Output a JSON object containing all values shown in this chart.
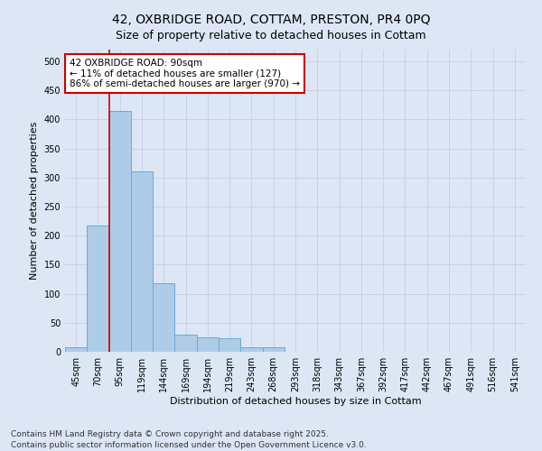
{
  "title_line1": "42, OXBRIDGE ROAD, COTTAM, PRESTON, PR4 0PQ",
  "title_line2": "Size of property relative to detached houses in Cottam",
  "xlabel": "Distribution of detached houses by size in Cottam",
  "ylabel": "Number of detached properties",
  "bar_color": "#aecce8",
  "bar_edge_color": "#6aaad4",
  "background_color": "#dce6f5",
  "categories": [
    "45sqm",
    "70sqm",
    "95sqm",
    "119sqm",
    "144sqm",
    "169sqm",
    "194sqm",
    "219sqm",
    "243sqm",
    "268sqm",
    "293sqm",
    "318sqm",
    "343sqm",
    "367sqm",
    "392sqm",
    "417sqm",
    "442sqm",
    "467sqm",
    "491sqm",
    "516sqm",
    "541sqm"
  ],
  "values": [
    8,
    218,
    415,
    310,
    118,
    30,
    25,
    23,
    8,
    8,
    0,
    0,
    0,
    0,
    0,
    0,
    0,
    0,
    0,
    0,
    0
  ],
  "annotation_text": "42 OXBRIDGE ROAD: 90sqm\n← 11% of detached houses are smaller (127)\n86% of semi-detached houses are larger (970) →",
  "annotation_box_color": "#ffffff",
  "annotation_edge_color": "#cc0000",
  "vline_color": "#cc0000",
  "vline_x": 1.5,
  "footer_line1": "Contains HM Land Registry data © Crown copyright and database right 2025.",
  "footer_line2": "Contains public sector information licensed under the Open Government Licence v3.0.",
  "ylim": [
    0,
    520
  ],
  "yticks": [
    0,
    50,
    100,
    150,
    200,
    250,
    300,
    350,
    400,
    450,
    500
  ],
  "title_fontsize": 10,
  "axis_label_fontsize": 8,
  "tick_fontsize": 7,
  "annotation_fontsize": 7.5,
  "footer_fontsize": 6.5
}
